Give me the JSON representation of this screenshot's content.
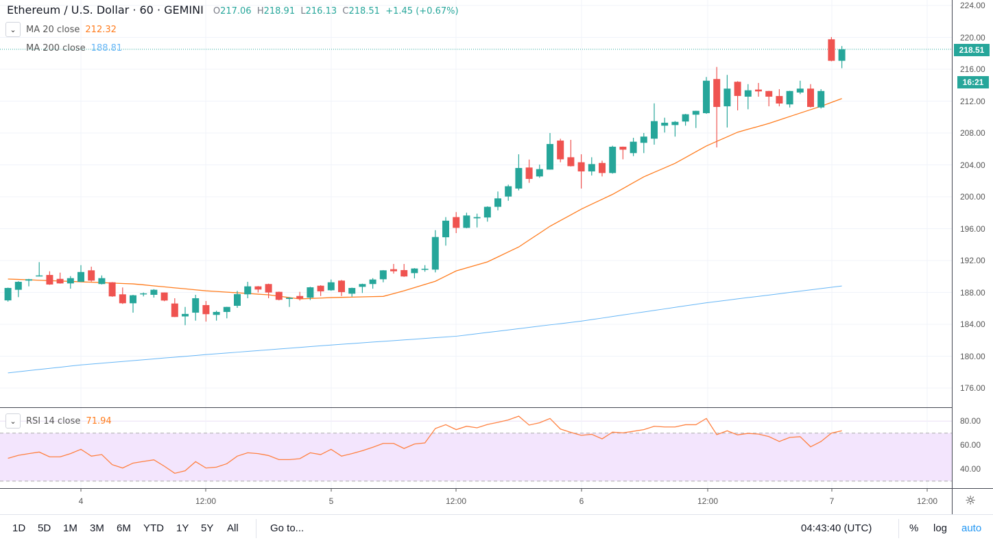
{
  "header": {
    "title": "Ethereum / U.S. Dollar · 60 · GEMINI",
    "o_label": "O",
    "o": "217.06",
    "h_label": "H",
    "h": "218.91",
    "l_label": "L",
    "l": "216.13",
    "c_label": "C",
    "c": "218.51",
    "change": "+1.45 (+0.67%)"
  },
  "indicators": {
    "ma20_label": "MA 20 close",
    "ma20_value": "212.32",
    "ma200_label": "MA 200 close",
    "ma200_value": "188.81",
    "rsi_label": "RSI 14 close",
    "rsi_value": "71.94"
  },
  "price_axis": [
    "224.00",
    "220.00",
    "216.00",
    "212.00",
    "208.00",
    "204.00",
    "200.00",
    "196.00",
    "192.00",
    "188.00",
    "184.00",
    "180.00",
    "176.00"
  ],
  "rsi_axis": [
    "80.00",
    "60.00",
    "40.00"
  ],
  "last_price_tag": "218.51",
  "countdown_tag": "16:21",
  "time_axis": [
    "4",
    "12:00",
    "5",
    "12:00",
    "6",
    "12:00",
    "7",
    "12:00"
  ],
  "toolbar": {
    "ranges": [
      "1D",
      "5D",
      "1M",
      "3M",
      "6M",
      "YTD",
      "1Y",
      "5Y",
      "All"
    ],
    "goto": "Go to...",
    "clock": "04:43:40 (UTC)",
    "percent": "%",
    "log": "log",
    "auto": "auto"
  },
  "icons": {
    "settings": "gear-icon",
    "collapse": "chevron-down-icon"
  },
  "colors": {
    "up": "#26a69a",
    "down": "#ef5350",
    "ma20": "#ff7b1c",
    "ma200": "#64b5f6",
    "rsi": "#ff8040",
    "rsi_band": "#f3e5fd",
    "auto": "#2196f3"
  },
  "chart_data": {
    "type": "candlestick",
    "interval": "60",
    "price_range": [
      174,
      225
    ],
    "ohlc": [
      [
        187.0,
        188.6,
        186.85,
        188.56
      ],
      [
        188.33,
        189.4,
        187.41,
        189.33
      ],
      [
        189.48,
        189.7,
        188.76,
        189.65
      ],
      [
        190.05,
        191.8,
        190.0,
        190.13
      ],
      [
        190.19,
        190.65,
        188.95,
        188.99
      ],
      [
        189.7,
        190.48,
        189.1,
        189.13
      ],
      [
        189.13,
        190.05,
        188.47,
        189.79
      ],
      [
        189.33,
        191.42,
        189.3,
        190.56
      ],
      [
        190.77,
        191.23,
        189.35,
        189.48
      ],
      [
        189.05,
        190.13,
        189.0,
        189.79
      ],
      [
        189.27,
        189.3,
        187.45,
        187.5
      ],
      [
        187.76,
        188.62,
        186.55,
        186.64
      ],
      [
        186.64,
        187.7,
        185.46,
        187.64
      ],
      [
        187.78,
        187.99,
        187.5,
        187.88
      ],
      [
        187.7,
        188.41,
        187.35,
        188.33
      ],
      [
        187.99,
        188.0,
        186.9,
        186.98
      ],
      [
        186.61,
        187.27,
        184.9,
        184.92
      ],
      [
        184.99,
        186.18,
        183.89,
        185.3
      ],
      [
        185.46,
        187.7,
        184.46,
        187.27
      ],
      [
        186.41,
        186.92,
        184.34,
        185.27
      ],
      [
        185.18,
        185.7,
        184.46,
        185.55
      ],
      [
        185.55,
        186.2,
        184.75,
        186.18
      ],
      [
        186.32,
        188.19,
        186.06,
        187.78
      ],
      [
        187.76,
        189.33,
        187.27,
        188.76
      ],
      [
        188.76,
        188.8,
        187.99,
        188.36
      ],
      [
        189.05,
        189.1,
        187.27,
        187.99
      ],
      [
        188.07,
        188.1,
        187.0,
        187.07
      ],
      [
        187.18,
        187.4,
        186.18,
        187.33
      ],
      [
        187.55,
        188.07,
        186.98,
        187.21
      ],
      [
        187.35,
        188.7,
        187.04,
        188.64
      ],
      [
        188.84,
        188.9,
        187.55,
        188.13
      ],
      [
        188.27,
        189.62,
        188.2,
        189.27
      ],
      [
        189.48,
        189.56,
        187.55,
        188.04
      ],
      [
        187.84,
        188.6,
        187.47,
        188.56
      ],
      [
        188.7,
        189.1,
        187.93,
        189.05
      ],
      [
        189.05,
        189.79,
        188.47,
        189.62
      ],
      [
        189.65,
        190.8,
        189.27,
        190.77
      ],
      [
        190.91,
        191.57,
        190.36,
        190.65
      ],
      [
        190.8,
        191.57,
        189.95,
        190.0
      ],
      [
        190.42,
        191.05,
        189.76,
        191.0
      ],
      [
        190.86,
        191.42,
        190.6,
        190.97
      ],
      [
        190.86,
        195.81,
        190.51,
        194.95
      ],
      [
        194.92,
        197.45,
        193.87,
        197.0
      ],
      [
        197.45,
        198.08,
        195.44,
        196.1
      ],
      [
        196.1,
        198.0,
        196.05,
        197.65
      ],
      [
        197.3,
        197.88,
        196.15,
        197.45
      ],
      [
        197.4,
        198.8,
        196.88,
        198.74
      ],
      [
        198.74,
        200.66,
        198.3,
        199.8
      ],
      [
        200.03,
        201.52,
        199.5,
        201.32
      ],
      [
        201.03,
        205.33,
        200.8,
        203.61
      ],
      [
        203.67,
        204.67,
        201.75,
        202.24
      ],
      [
        202.55,
        204.04,
        202.38,
        203.47
      ],
      [
        203.41,
        208.0,
        203.4,
        206.62
      ],
      [
        207.05,
        207.28,
        204.33,
        204.7
      ],
      [
        204.96,
        207.14,
        203.8,
        203.84
      ],
      [
        204.33,
        205.33,
        201.03,
        203.18
      ],
      [
        203.18,
        204.96,
        202.67,
        204.1
      ],
      [
        204.24,
        204.53,
        202.55,
        202.98
      ],
      [
        202.98,
        206.4,
        202.9,
        206.28
      ],
      [
        206.28,
        206.3,
        204.7,
        205.91
      ],
      [
        205.48,
        207.4,
        205.1,
        206.91
      ],
      [
        206.77,
        208.0,
        205.48,
        207.55
      ],
      [
        207.29,
        211.72,
        206.54,
        209.49
      ],
      [
        208.92,
        209.92,
        208.06,
        209.29
      ],
      [
        209.0,
        209.5,
        207.55,
        209.4
      ],
      [
        209.44,
        210.4,
        208.92,
        210.35
      ],
      [
        210.3,
        210.8,
        208.63,
        210.78
      ],
      [
        210.49,
        215.03,
        210.4,
        214.56
      ],
      [
        214.77,
        216.29,
        206.19,
        211.27
      ],
      [
        211.35,
        215.29,
        208.69,
        213.57
      ],
      [
        214.43,
        214.5,
        210.84,
        212.65
      ],
      [
        212.56,
        214.13,
        210.98,
        213.36
      ],
      [
        213.45,
        214.28,
        212.56,
        213.22
      ],
      [
        213.27,
        213.3,
        211.35,
        212.56
      ],
      [
        212.64,
        213.5,
        211.35,
        211.7
      ],
      [
        211.59,
        213.3,
        211.2,
        213.27
      ],
      [
        213.08,
        214.56,
        212.88,
        213.57
      ],
      [
        213.57,
        214.13,
        211.2,
        211.27
      ],
      [
        211.21,
        213.5,
        211.07,
        213.27
      ],
      [
        219.76,
        220.04,
        217.0,
        217.06
      ],
      [
        217.06,
        218.91,
        216.13,
        218.51
      ]
    ],
    "ma20": [
      189.68,
      189.63,
      189.58,
      189.53,
      189.48,
      189.43,
      189.38,
      189.33,
      189.28,
      189.23,
      189.17,
      189.12,
      189.07,
      188.95,
      188.82,
      188.7,
      188.57,
      188.45,
      188.32,
      188.2,
      188.12,
      188.03,
      187.95,
      187.87,
      187.78,
      187.7,
      187.53,
      187.35,
      187.18,
      187.24,
      187.29,
      187.35,
      187.38,
      187.41,
      187.44,
      187.47,
      187.5,
      187.85,
      188.2,
      188.6,
      189.0,
      189.4,
      190.05,
      190.7,
      191.08,
      191.45,
      191.83,
      192.45,
      193.08,
      193.7,
      194.57,
      195.43,
      196.3,
      197.02,
      197.73,
      198.45,
      199.07,
      199.68,
      200.3,
      201.03,
      201.77,
      202.5,
      203.07,
      203.63,
      204.2,
      204.92,
      205.65,
      206.37,
      206.95,
      207.52,
      208.1,
      208.47,
      208.83,
      209.2,
      209.63,
      210.07,
      210.5,
      210.93,
      211.35,
      211.84,
      212.32
    ],
    "ma200": [
      177.9,
      178.04,
      178.19,
      178.33,
      178.47,
      178.61,
      178.76,
      178.9,
      179.01,
      179.12,
      179.23,
      179.33,
      179.44,
      179.55,
      179.66,
      179.77,
      179.87,
      179.98,
      180.09,
      180.2,
      180.3,
      180.4,
      180.5,
      180.6,
      180.7,
      180.8,
      180.9,
      181.0,
      181.1,
      181.2,
      181.3,
      181.4,
      181.49,
      181.58,
      181.68,
      181.77,
      181.86,
      181.95,
      182.04,
      182.13,
      182.23,
      182.32,
      182.41,
      182.5,
      182.66,
      182.82,
      182.98,
      183.13,
      183.29,
      183.45,
      183.61,
      183.77,
      183.93,
      184.08,
      184.24,
      184.4,
      184.59,
      184.78,
      184.98,
      185.17,
      185.36,
      185.55,
      185.74,
      185.93,
      186.13,
      186.32,
      186.51,
      186.7,
      186.86,
      187.02,
      187.19,
      187.35,
      187.51,
      187.67,
      187.83,
      188.0,
      188.16,
      188.32,
      188.48,
      188.65,
      188.81
    ],
    "rsi": [
      49.0,
      51.5,
      52.9,
      54.2,
      50.2,
      50.2,
      52.9,
      56.5,
      50.8,
      52.1,
      43.7,
      40.9,
      45.0,
      46.4,
      47.7,
      42.4,
      36.5,
      38.6,
      46.2,
      40.9,
      41.6,
      44.5,
      50.8,
      53.6,
      52.9,
      51.3,
      47.9,
      47.9,
      48.7,
      53.6,
      52.1,
      56.5,
      50.8,
      52.9,
      55.3,
      58.2,
      61.4,
      61.4,
      57.2,
      60.9,
      61.8,
      73.8,
      77.0,
      72.9,
      75.7,
      74.4,
      77.2,
      79.0,
      81.0,
      84.1,
      76.7,
      78.6,
      82.2,
      73.4,
      70.6,
      68.1,
      69.0,
      65.2,
      70.8,
      70.2,
      71.5,
      72.9,
      75.7,
      75.1,
      75.1,
      77.0,
      77.0,
      82.2,
      68.7,
      71.9,
      68.5,
      69.8,
      69.2,
      67.1,
      63.0,
      66.4,
      67.0,
      58.6,
      63.0,
      70.0,
      71.94
    ],
    "rsi_bands": [
      70,
      30
    ],
    "rsi_range": [
      20,
      90
    ],
    "grid": true
  }
}
